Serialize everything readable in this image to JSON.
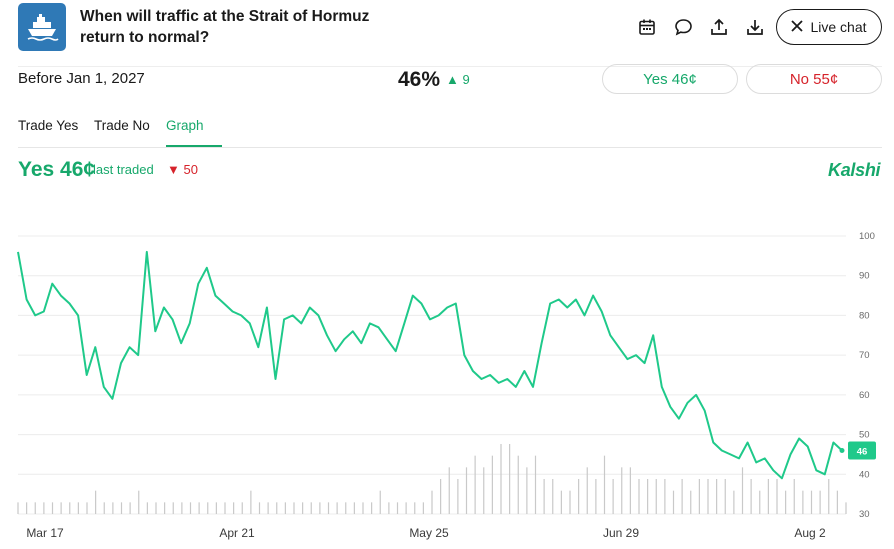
{
  "header": {
    "title": "When will traffic at the Strait of Hormuz return to normal?",
    "live_chat_label": "Live chat",
    "icons": [
      "ship-icon",
      "calendar-icon",
      "comment-icon",
      "share-icon",
      "download-icon",
      "close-icon"
    ]
  },
  "market": {
    "outcome": "Before Jan 1, 2027",
    "probability": "46%",
    "probability_change": "▲ 9",
    "yes_button": "Yes 46¢",
    "no_button": "No 55¢"
  },
  "tabs": [
    {
      "label": "Trade Yes",
      "active": false
    },
    {
      "label": "Trade No",
      "active": false
    },
    {
      "label": "Graph",
      "active": true
    }
  ],
  "graph_header": {
    "yes_price": "Yes 46¢",
    "last_traded": "last traded",
    "change": "▼ 50",
    "brand": "Kalshi"
  },
  "colors": {
    "accent": "#17a86b",
    "negative": "#d6232b",
    "line": "#1fc98a",
    "volume": "#c9c9c9"
  },
  "chart_data": {
    "type": "line",
    "x_tick_labels": [
      "Mar 17",
      "Apr 21",
      "May 25",
      "Jun 29",
      "Aug 2"
    ],
    "y_ticks": [
      30,
      40,
      50,
      60,
      70,
      80,
      90,
      100
    ],
    "ylim": [
      30,
      100
    ],
    "current_value_label": "46",
    "series": [
      {
        "values": [
          96,
          84,
          80,
          81,
          88,
          85,
          83,
          80,
          65,
          72,
          62,
          59,
          68,
          72,
          70,
          96,
          76,
          82,
          79,
          73,
          78,
          88,
          92,
          85,
          83,
          81,
          80,
          78,
          72,
          82,
          64,
          79,
          80,
          78,
          82,
          80,
          75,
          71,
          74,
          76,
          73,
          78,
          77,
          74,
          71,
          78,
          85,
          83,
          79,
          80,
          82,
          83,
          70,
          66,
          64,
          65,
          63,
          64,
          62,
          66,
          62,
          73,
          83,
          84,
          82,
          84,
          80,
          85,
          81,
          75,
          72,
          69,
          70,
          68,
          75,
          62,
          57,
          54,
          58,
          60,
          56,
          48,
          46,
          45,
          44,
          48,
          43,
          44,
          41,
          39,
          45,
          49,
          47,
          41,
          40,
          48,
          46
        ]
      },
      {
        "name": "volume",
        "values": [
          1,
          1,
          1,
          1,
          1,
          1,
          1,
          1,
          1,
          2,
          1,
          1,
          1,
          1,
          2,
          1,
          1,
          1,
          1,
          1,
          1,
          1,
          1,
          1,
          1,
          1,
          1,
          2,
          1,
          1,
          1,
          1,
          1,
          1,
          1,
          1,
          1,
          1,
          1,
          1,
          1,
          1,
          2,
          1,
          1,
          1,
          1,
          1,
          2,
          3,
          4,
          3,
          4,
          5,
          4,
          5,
          6,
          6,
          5,
          4,
          5,
          3,
          3,
          2,
          2,
          3,
          4,
          3,
          5,
          3,
          4,
          4,
          3,
          3,
          3,
          3,
          2,
          3,
          2,
          3,
          3,
          3,
          3,
          2,
          4,
          3,
          2,
          3,
          3,
          2,
          3,
          2,
          2,
          2,
          3,
          2,
          1
        ]
      }
    ]
  }
}
